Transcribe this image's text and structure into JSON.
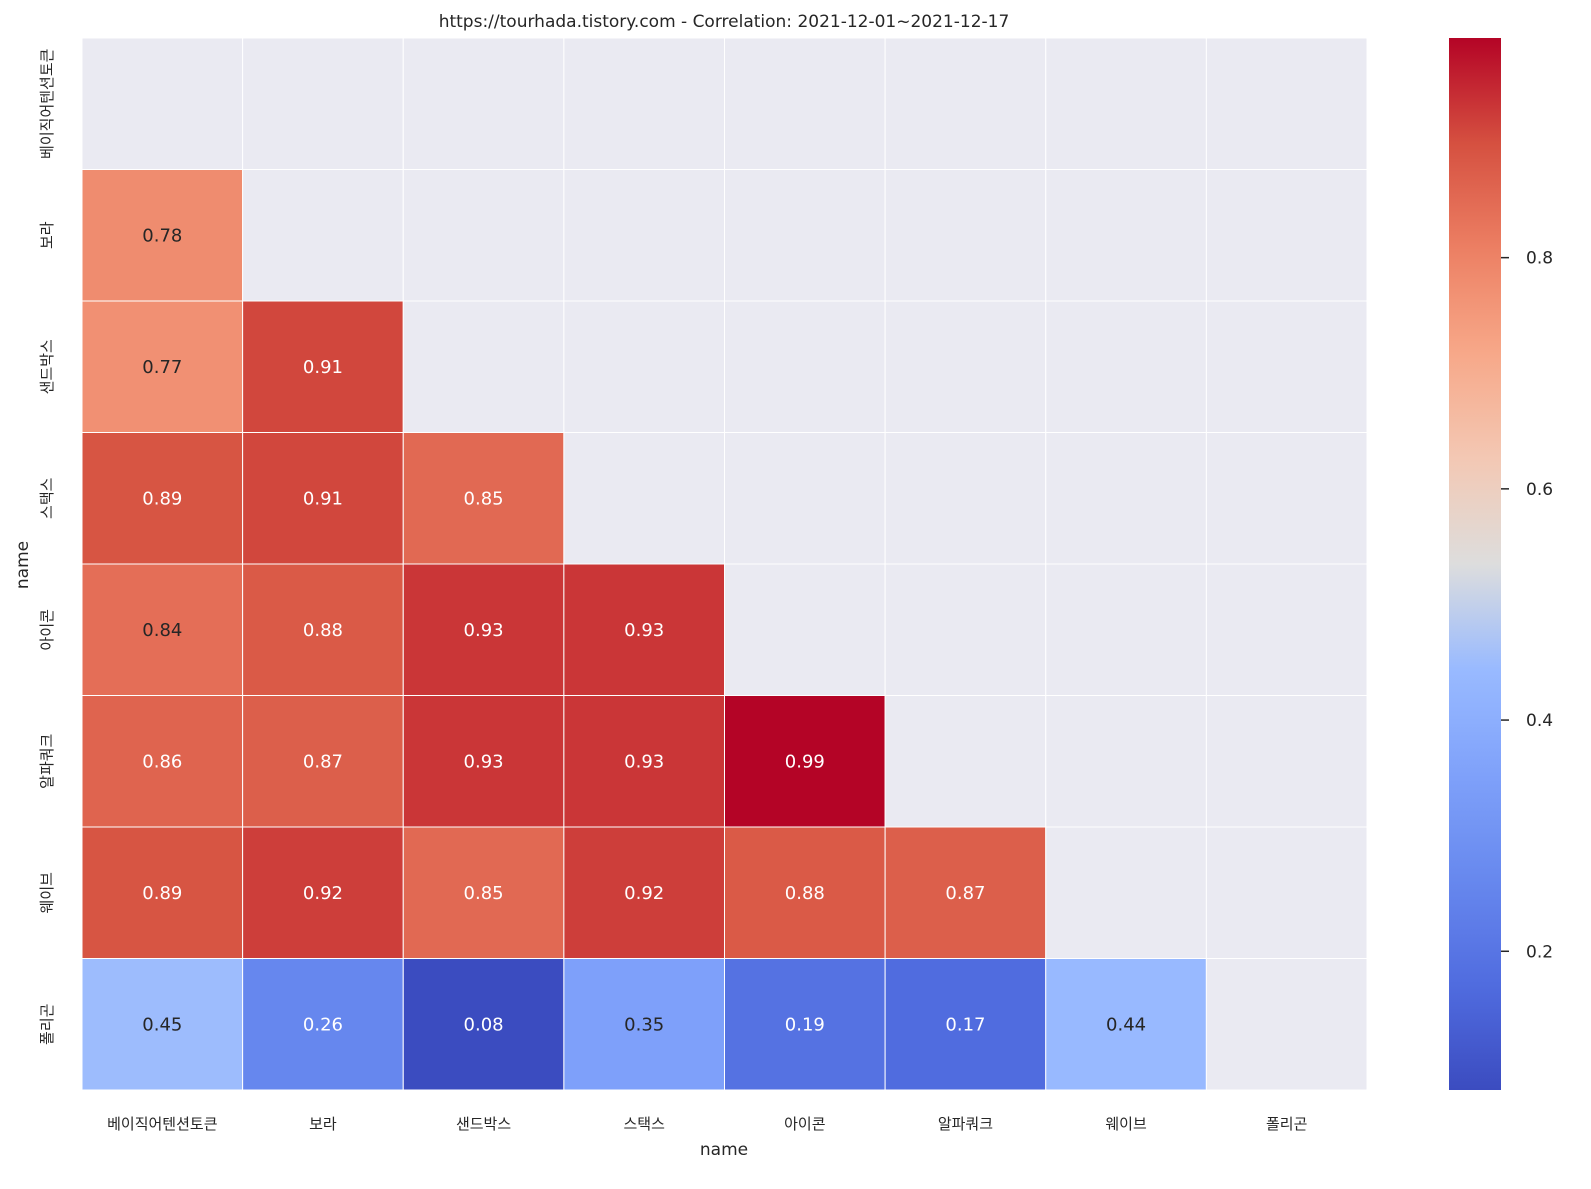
{
  "chart_data": {
    "type": "heatmap",
    "title": "https://tourhada.tistory.com - Correlation: 2021-12-01~2021-12-17",
    "xlabel": "name",
    "ylabel": "name",
    "categories": [
      "베이직어텐션토큰",
      "보라",
      "샌드박스",
      "스택스",
      "아이콘",
      "알파쿼크",
      "웨이브",
      "폴리곤"
    ],
    "matrix": [
      [
        null,
        null,
        null,
        null,
        null,
        null,
        null,
        null
      ],
      [
        0.78,
        null,
        null,
        null,
        null,
        null,
        null,
        null
      ],
      [
        0.77,
        0.91,
        null,
        null,
        null,
        null,
        null,
        null
      ],
      [
        0.89,
        0.91,
        0.85,
        null,
        null,
        null,
        null,
        null
      ],
      [
        0.84,
        0.88,
        0.93,
        0.93,
        null,
        null,
        null,
        null
      ],
      [
        0.86,
        0.87,
        0.93,
        0.93,
        0.99,
        null,
        null,
        null
      ],
      [
        0.89,
        0.92,
        0.85,
        0.92,
        0.88,
        0.87,
        null,
        null
      ],
      [
        0.45,
        0.26,
        0.08,
        0.35,
        0.19,
        0.17,
        0.44,
        null
      ]
    ],
    "cell_labels": [
      [
        null,
        null,
        null,
        null,
        null,
        null,
        null,
        null
      ],
      [
        "0.78",
        null,
        null,
        null,
        null,
        null,
        null,
        null
      ],
      [
        "0.77",
        "0.91",
        null,
        null,
        null,
        null,
        null,
        null
      ],
      [
        "0.89",
        "0.91",
        "0.85",
        null,
        null,
        null,
        null,
        null
      ],
      [
        "0.84",
        "0.88",
        "0.93",
        "0.93",
        null,
        null,
        null,
        null
      ],
      [
        "0.86",
        "0.87",
        "0.93",
        "0.93",
        "0.99",
        null,
        null,
        null
      ],
      [
        "0.89",
        "0.92",
        "0.85",
        "0.92",
        "0.88",
        "0.87",
        null,
        null
      ],
      [
        "0.45",
        "0.26",
        "0.08",
        "0.35",
        "0.19",
        "0.17",
        "0.44",
        null
      ]
    ],
    "mask": "upper-triangle-including-diagonal",
    "colormap": "coolwarm",
    "color_range": [
      0.08,
      0.99
    ],
    "colorbar_ticks": [
      0.2,
      0.4,
      0.6,
      0.8
    ],
    "colorbar_tick_labels": [
      "0.2",
      "0.4",
      "0.6",
      "0.8"
    ],
    "masked_cell_color": "#eaeaf2",
    "grid_line_color": "#ffffff"
  }
}
